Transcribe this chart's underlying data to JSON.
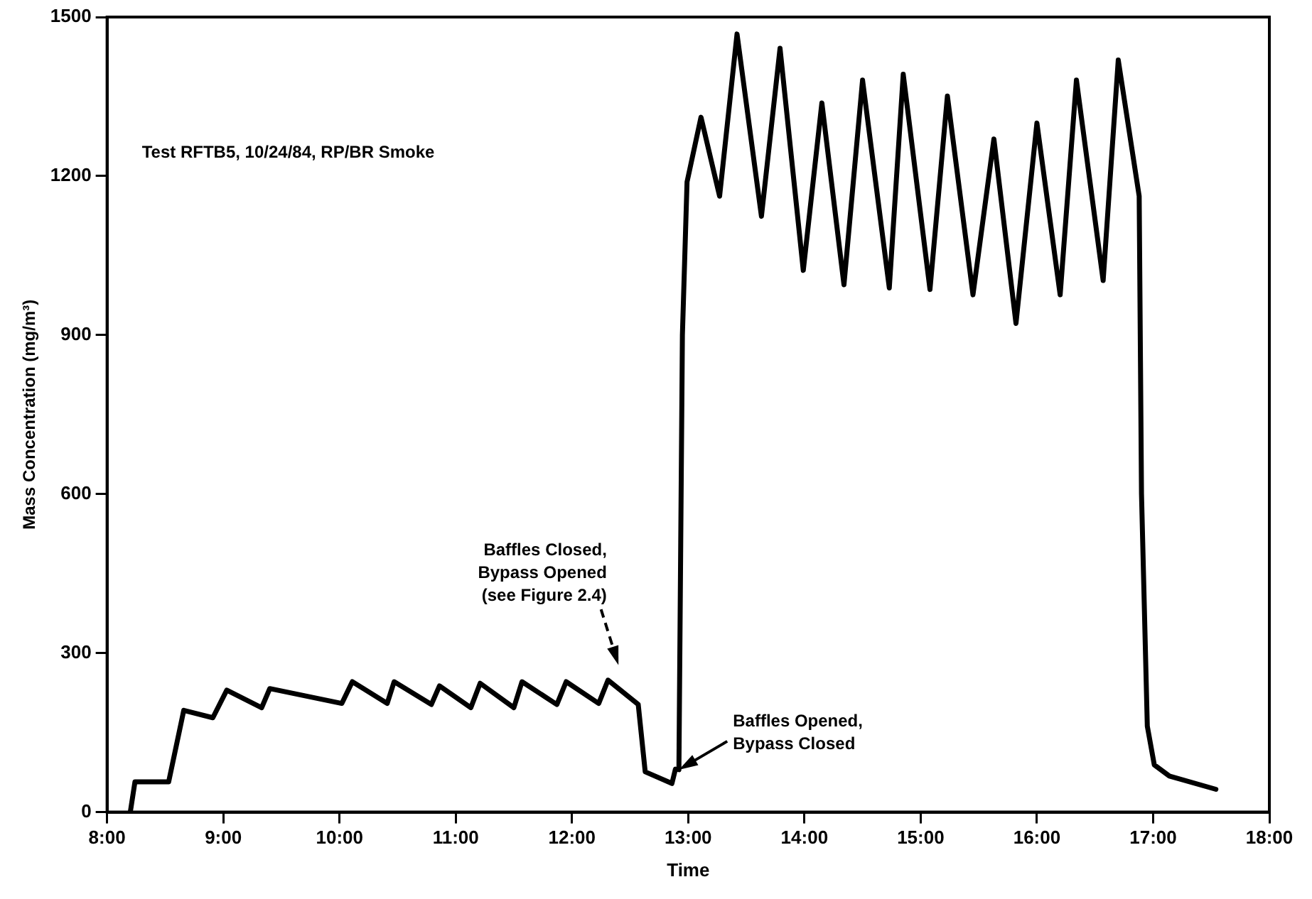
{
  "chart_data": {
    "type": "line",
    "xlabel": "Time",
    "ylabel": "Mass Concentration (mg/m³)",
    "x": [
      8.2,
      8.24,
      8.53,
      8.66,
      8.91,
      9.03,
      9.33,
      9.4,
      10.02,
      10.11,
      10.41,
      10.47,
      10.79,
      10.86,
      11.13,
      11.21,
      11.5,
      11.57,
      11.87,
      11.95,
      12.23,
      12.31,
      12.57,
      12.63,
      12.86,
      12.89,
      12.92,
      12.95,
      12.99,
      13.11,
      13.27,
      13.42,
      13.63,
      13.79,
      13.99,
      14.15,
      14.34,
      14.5,
      14.73,
      14.85,
      15.08,
      15.23,
      15.45,
      15.63,
      15.82,
      16.0,
      16.2,
      16.34,
      16.57,
      16.7,
      16.88,
      16.9,
      16.95,
      17.01,
      17.14,
      17.54
    ],
    "series": [
      {
        "color": "#000000",
        "values": [
          0,
          57,
          57,
          192,
          178,
          230,
          197,
          233,
          205,
          246,
          205,
          246,
          203,
          238,
          197,
          243,
          197,
          246,
          203,
          246,
          205,
          249,
          203,
          76,
          54,
          81,
          80,
          900,
          1189,
          1311,
          1162,
          1468,
          1124,
          1441,
          1022,
          1338,
          995,
          1381,
          989,
          1392,
          986,
          1351,
          976,
          1270,
          922,
          1300,
          976,
          1381,
          1003,
          1419,
          1162,
          600,
          162,
          89,
          68,
          43
        ]
      }
    ],
    "xlim": [
      8,
      18
    ],
    "xticks": [
      {
        "value": 8,
        "label": "8:00"
      },
      {
        "value": 9,
        "label": "9:00"
      },
      {
        "value": 10,
        "label": "10:00"
      },
      {
        "value": 11,
        "label": "11:00"
      },
      {
        "value": 12,
        "label": "12:00"
      },
      {
        "value": 13,
        "label": "13:00"
      },
      {
        "value": 14,
        "label": "14:00"
      },
      {
        "value": 15,
        "label": "15:00"
      },
      {
        "value": 16,
        "label": "16:00"
      },
      {
        "value": 17,
        "label": "17:00"
      },
      {
        "value": 18,
        "label": "18:00"
      }
    ],
    "ylim": [
      0,
      1500
    ],
    "yticks": [
      0,
      300,
      600,
      900,
      1200,
      1500
    ],
    "grid": false,
    "legend": false,
    "marker": "none",
    "line_style": "solid",
    "annotations": [
      "Test RFTB5, 10/24/84, RP/BR Smoke",
      "Baffles Closed,\nBypass Opened\n(see Figure 2.4)",
      {
        "text": "Baffles Opened,\nBypass Closed",
        "x": 12.92,
        "y": 80
      }
    ]
  }
}
